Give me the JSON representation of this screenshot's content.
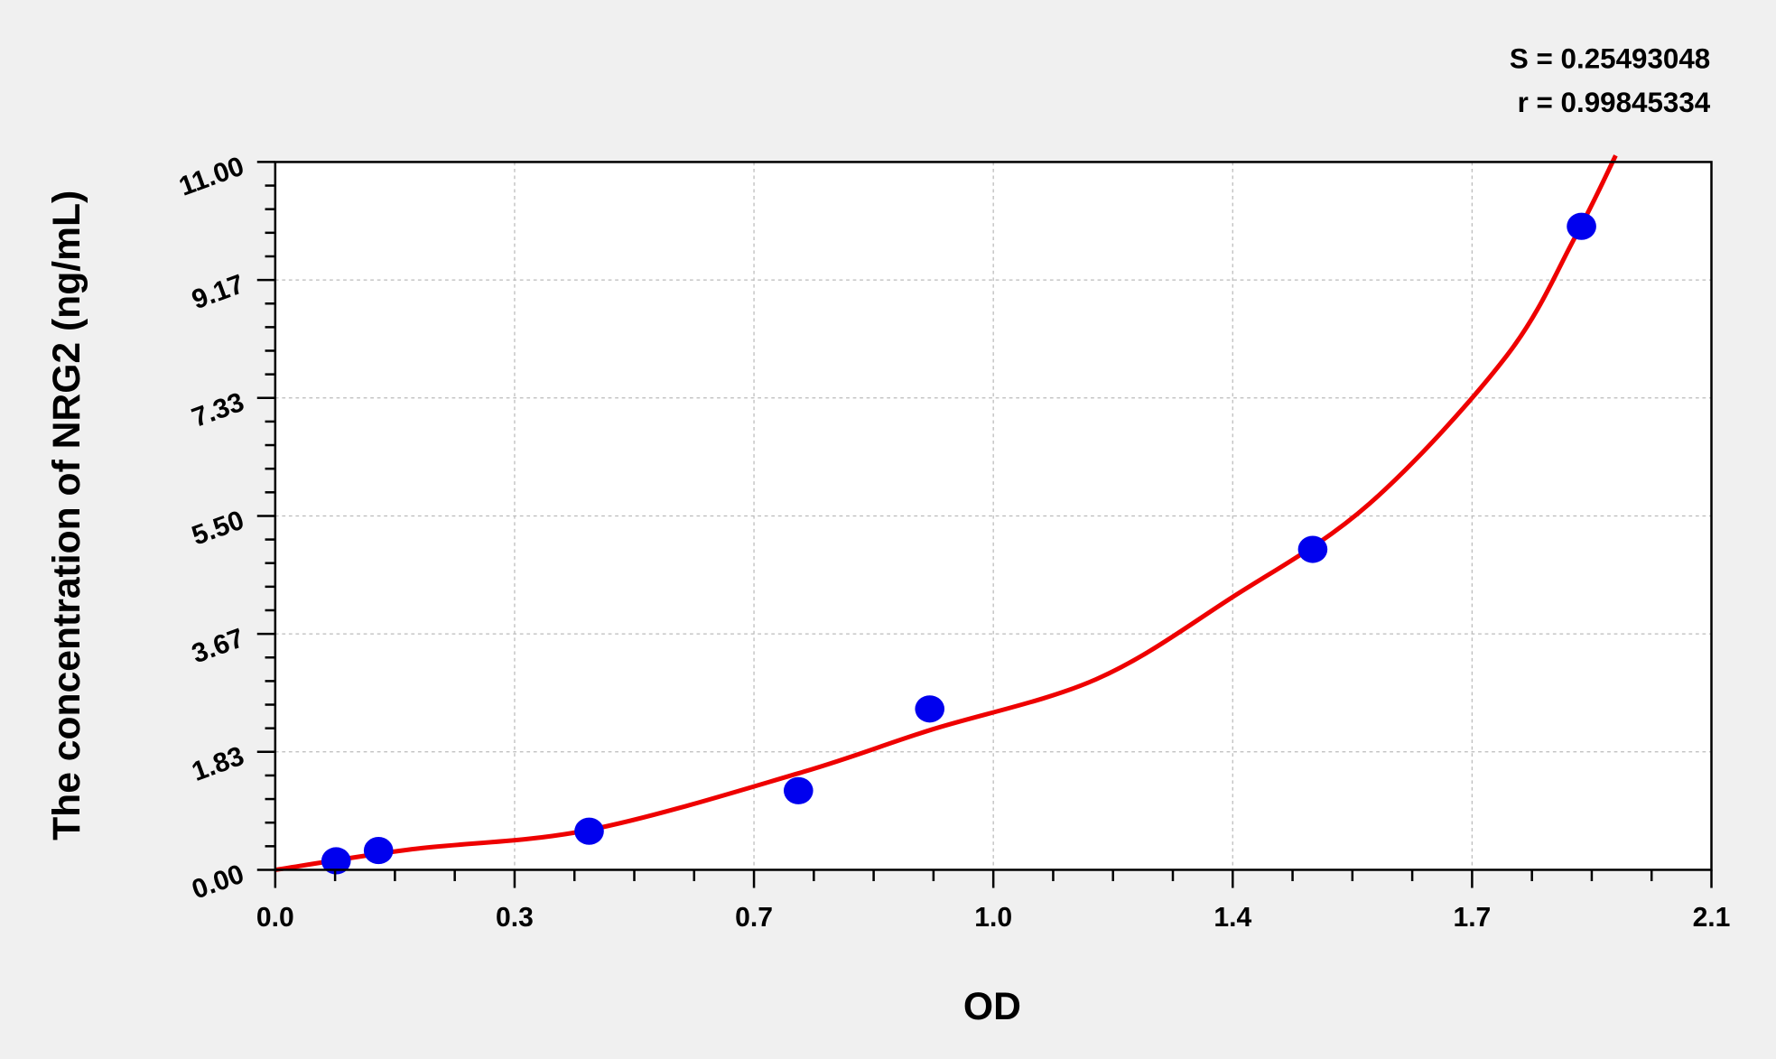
{
  "chart_data": {
    "type": "scatter",
    "title": "",
    "xlabel": "OD",
    "ylabel": "The concentration of NRG2 (ng/mL)",
    "xlim": [
      0,
      2.1
    ],
    "ylim": [
      0,
      11
    ],
    "x_ticks": [
      "0.0",
      "0.3",
      "0.7",
      "1.0",
      "1.4",
      "1.7",
      "2.1"
    ],
    "y_ticks": [
      "0.00",
      "1.83",
      "3.67",
      "5.50",
      "7.33",
      "9.17",
      "11.00"
    ],
    "grid": true,
    "annotations": [
      "S = 0.25493048",
      "r = 0.99845334"
    ],
    "series": [
      {
        "kind": "points",
        "color": "#0000ee",
        "x": [
          0.089,
          0.151,
          0.459,
          0.765,
          0.957,
          1.517,
          1.91
        ],
        "y": [
          0.14,
          0.3,
          0.6,
          1.23,
          2.5,
          4.98,
          10.0
        ]
      },
      {
        "kind": "fit-curve",
        "color": "#ee0000",
        "x": [
          0,
          0.2,
          0.459,
          0.765,
          0.957,
          1.2,
          1.4,
          1.6,
          1.8,
          1.9,
          1.96
        ],
        "y": [
          0,
          0.32,
          0.62,
          1.5,
          2.17,
          2.96,
          4.24,
          5.69,
          7.98,
          9.82,
          11.1
        ]
      }
    ]
  }
}
